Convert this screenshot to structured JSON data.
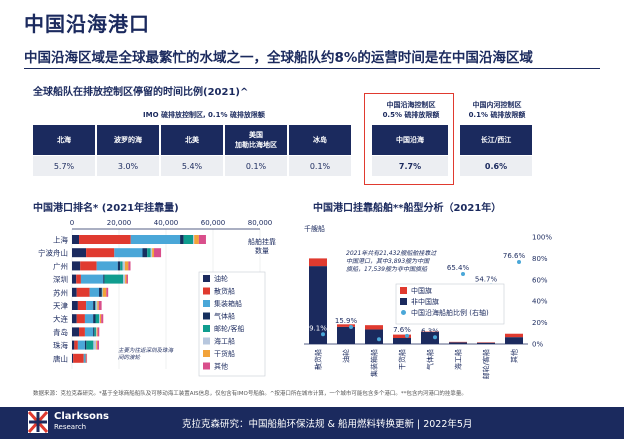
{
  "header": {
    "title": "中国沿海港口",
    "subtitle": "中国沿海区域是全球最繁忙的水域之一，全球船队约8%的运营时间是在中国沿海区域"
  },
  "table": {
    "title": "全球船队在排放控制区停留的时间比例(2021)^",
    "group_imo": "IMO 硫排放控制区, 0.1% 硫排放限额",
    "group_china_coast": [
      "中国沿海控制区",
      "0.5% 硫排放限额"
    ],
    "group_china_inland": [
      "中国内河控制区",
      "0.1% 硫排放限额"
    ],
    "columns": [
      {
        "name": [
          "北海"
        ],
        "value": "5.7%"
      },
      {
        "name": [
          "波罗的海"
        ],
        "value": "3.0%"
      },
      {
        "name": [
          "北美"
        ],
        "value": "5.4%"
      },
      {
        "name": [
          "美国",
          "加勒比海地区"
        ],
        "value": "0.1%"
      },
      {
        "name": [
          "冰岛"
        ],
        "value": "0.1%"
      },
      {
        "name": [
          "中国沿海"
        ],
        "value": "7.7%"
      },
      {
        "name": [
          "长江/西江"
        ],
        "value": "0.6%"
      }
    ]
  },
  "chart_data": [
    {
      "type": "bar",
      "orientation": "horizontal",
      "stacked": true,
      "title": "中国港口排名* (2021年挂靠量)",
      "ylabel_legend": [
        "船舶挂靠",
        "数量"
      ],
      "xlim": [
        0,
        80000
      ],
      "xticks": [
        "0",
        "20,000",
        "40,000",
        "60,000",
        "80,000"
      ],
      "categories": [
        "上海",
        "宁波舟山",
        "广州",
        "深圳",
        "苏州",
        "天津",
        "大连",
        "青岛",
        "珠海",
        "唐山"
      ],
      "series": [
        {
          "name": "油轮",
          "color": "#1b2a5e",
          "values": [
            3000,
            6000,
            3500,
            1800,
            2000,
            2500,
            2000,
            3000,
            1000,
            500
          ]
        },
        {
          "name": "散货船",
          "color": "#e03a2f",
          "values": [
            22000,
            12000,
            7000,
            2000,
            5500,
            3500,
            3500,
            2500,
            1500,
            4500
          ]
        },
        {
          "name": "集装箱船",
          "color": "#4aa7d8",
          "values": [
            21000,
            12000,
            9000,
            9500,
            4000,
            3000,
            3500,
            3500,
            3000,
            500
          ]
        },
        {
          "name": "气体船",
          "color": "#16305f",
          "values": [
            1500,
            2000,
            1000,
            500,
            1200,
            800,
            1000,
            500,
            600,
            200
          ]
        },
        {
          "name": "邮轮/客船",
          "color": "#0f9d8f",
          "values": [
            4000,
            1500,
            1000,
            8000,
            200,
            300,
            1500,
            700,
            3000,
            100
          ]
        },
        {
          "name": "海工船",
          "color": "#b7c7de",
          "values": [
            500,
            600,
            1000,
            800,
            200,
            700,
            400,
            300,
            1200,
            100
          ]
        },
        {
          "name": "干货船",
          "color": "#f2a33a",
          "values": [
            2000,
            800,
            1500,
            600,
            1500,
            600,
            500,
            400,
            400,
            200
          ]
        },
        {
          "name": "其他",
          "color": "#d94e8b",
          "values": [
            3000,
            3000,
            900,
            600,
            800,
            1200,
            900,
            700,
            800,
            300
          ]
        }
      ],
      "annotation": "主要为往返深圳及珠海间的渡轮"
    },
    {
      "type": "bar",
      "title": "中国港口挂靠船舶**船型分析（2021年）",
      "ylabel": "千艘船",
      "ylim": [
        0,
        250
      ],
      "yticks": [
        "0",
        "50",
        "100",
        "150",
        "200",
        "250"
      ],
      "y2lim": [
        0,
        1.0
      ],
      "y2ticks": [
        "0%",
        "20%",
        "40%",
        "60%",
        "80%",
        "100%"
      ],
      "categories": [
        "散货船",
        "油轮",
        "集装箱船",
        "干货船",
        "气体船",
        "海工船",
        "邮轮/客船",
        "其他"
      ],
      "series": [
        {
          "name": "中国旗",
          "color": "#e03a2f",
          "values": [
            18,
            6,
            10,
            8,
            1,
            1,
            1,
            8
          ]
        },
        {
          "name": "非中国旗",
          "color": "#1b2a5e",
          "values": [
            182,
            40,
            34,
            14,
            28,
            4,
            3,
            16
          ]
        },
        {
          "name": "中国沿海船舶比例 (右轴)",
          "color": "#4aa7d8",
          "axis": "y2",
          "values": [
            0.091,
            0.159,
            0.044,
            0.076,
            0.063,
            0.654,
            0.547,
            0.766
          ]
        }
      ],
      "point_labels": [
        "9.1%",
        "15.9%",
        "4.4%",
        "7.6%",
        "6.3%",
        "65.4%",
        "54.7%",
        "76.6%"
      ],
      "annotation": [
        "2021年共有21,432艘船舶挂靠过",
        "中国港口，其中3,893艘为中国",
        "旗船，17,539艘为非中国旗船"
      ]
    }
  ],
  "notes": "数据来源：克拉克森研究。*基于全球商船船队及可移动海工装置AIS信息，仅包含有IMO号船舶。^按港口所在城市计算，一个城市可能包含多个港口。**包含内河港口的挂靠量。",
  "footer": {
    "brand": "Clarksons",
    "brand_sub": "Research",
    "text": "克拉克森研究：中国船舶环保法规 & 船用燃料转换更新 | 2022年5月"
  }
}
